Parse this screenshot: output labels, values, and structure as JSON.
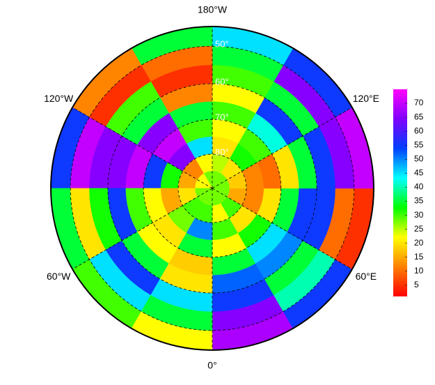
{
  "chart_data": {
    "type": "polar-map",
    "lon_edges": [
      0,
      30,
      60,
      90,
      120,
      150,
      180,
      210,
      240,
      270,
      300,
      330,
      360
    ],
    "lat_edges": [
      45,
      50,
      55,
      60,
      65,
      70,
      75,
      80,
      85,
      90
    ],
    "values": [
      [
        68,
        65,
        55,
        52,
        35,
        22,
        30,
        22,
        28
      ],
      [
        55,
        40,
        35,
        50,
        45,
        32,
        20,
        30,
        28
      ],
      [
        5,
        10,
        55,
        55,
        35,
        20,
        12,
        15,
        28
      ],
      [
        70,
        65,
        55,
        35,
        20,
        10,
        12,
        18,
        28
      ],
      [
        55,
        65,
        35,
        55,
        42,
        30,
        32,
        20,
        28
      ],
      [
        45,
        35,
        30,
        22,
        30,
        22,
        20,
        25,
        28
      ],
      [
        35,
        10,
        5,
        12,
        35,
        30,
        45,
        22,
        28
      ],
      [
        12,
        5,
        30,
        35,
        65,
        70,
        65,
        12,
        22
      ],
      [
        55,
        70,
        65,
        65,
        70,
        55,
        32,
        15,
        22
      ],
      [
        35,
        20,
        32,
        55,
        30,
        22,
        15,
        20,
        28
      ],
      [
        30,
        45,
        55,
        35,
        22,
        20,
        28,
        30,
        28
      ],
      [
        22,
        35,
        45,
        20,
        18,
        35,
        50,
        30,
        28
      ]
    ],
    "lonticks": [
      {
        "value": 180,
        "label": "180°W"
      },
      {
        "value": 120,
        "label": "120°E"
      },
      {
        "value": 60,
        "label": "60°E"
      },
      {
        "value": 0,
        "label": "0°"
      },
      {
        "value": -60,
        "label": "60°W"
      },
      {
        "value": -120,
        "label": "120°W"
      }
    ],
    "latticks": [
      {
        "value": 50,
        "label": "50°"
      },
      {
        "value": 60,
        "label": "60°"
      },
      {
        "value": 70,
        "label": "70°"
      },
      {
        "value": 80,
        "label": "80°"
      }
    ],
    "clim": [
      1,
      75
    ],
    "cticks": [
      5,
      10,
      15,
      20,
      25,
      30,
      35,
      40,
      45,
      50,
      55,
      60,
      65,
      70
    ],
    "colormap": [
      "#ff0000",
      "#ff8000",
      "#ffff00",
      "#00ff00",
      "#00ffff",
      "#0040ff",
      "#8000ff",
      "#ff00ff"
    ]
  }
}
